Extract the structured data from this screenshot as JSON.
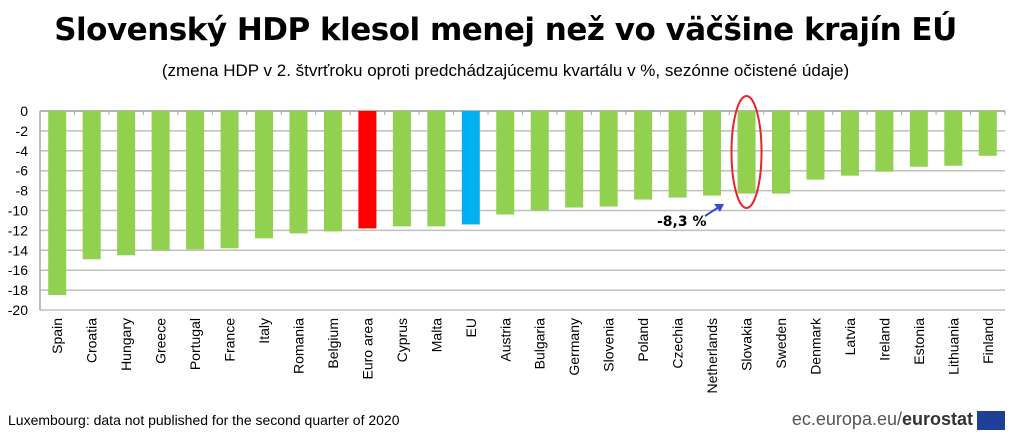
{
  "title": "Slovenský HDP klesol menej než vo väčšine krajín EÚ",
  "subtitle": "(zmena HDP v 2. štvrťroku oproti predchádzajúcemu kvartálu v %, sezónne očistené údaje)",
  "footnote": "Luxembourg:  data not published  for the second quarter of 2020",
  "brand": {
    "site": "ec.europa.eu/",
    "name": "eurostat"
  },
  "colors": {
    "country": "#92d050",
    "euro_area": "#ff0000",
    "eu": "#00b0f0",
    "highlight": "#e8242a",
    "arrow": "#3a4fd0"
  },
  "chart_data": {
    "type": "bar",
    "title": "Slovenský HDP klesol menej než vo väčšine krajín EÚ",
    "xlabel": "",
    "ylabel": "",
    "ylim": [
      -20,
      0
    ],
    "yticks": [
      0,
      -2,
      -4,
      -6,
      -8,
      -10,
      -12,
      -14,
      -16,
      -18,
      -20
    ],
    "grid": true,
    "categories": [
      "Spain",
      "Croatia",
      "Hungary",
      "Greece",
      "Portugal",
      "France",
      "Italy",
      "Romania",
      "Belgium",
      "Euro area",
      "Cyprus",
      "Malta",
      "EU",
      "Austria",
      "Bulgaria",
      "Germany",
      "Slovenia",
      "Poland",
      "Czechia",
      "Netherlands",
      "Slovakia",
      "Sweden",
      "Denmark",
      "Latvia",
      "Ireland",
      "Estonia",
      "Lithuania",
      "Finland"
    ],
    "values": [
      -18.5,
      -14.9,
      -14.5,
      -14.0,
      -13.9,
      -13.8,
      -12.8,
      -12.3,
      -12.1,
      -11.8,
      -11.6,
      -11.6,
      -11.4,
      -10.4,
      -10.0,
      -9.7,
      -9.6,
      -8.9,
      -8.7,
      -8.5,
      -8.3,
      -8.3,
      -6.9,
      -6.5,
      -6.1,
      -5.6,
      -5.5,
      -4.5
    ],
    "annotation": {
      "category": "Slovakia",
      "text": "-8,3 %"
    }
  }
}
